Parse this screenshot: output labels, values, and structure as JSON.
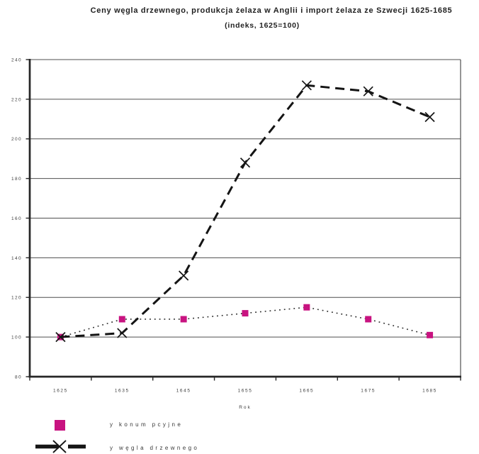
{
  "title": "Ceny węgla drzewnego, produkcja żelaza w Anglii i import żelaza ze Szwecji 1625-1685",
  "subtitle": "(indeks, 1625=100)",
  "colors": {
    "consumption_series": "#C81380",
    "coal_series": "#161616",
    "gridline": "#4f4f4f",
    "axis": "#262626",
    "label_text": "#3d3d3d"
  },
  "chart_data": {
    "type": "line",
    "title": "Ceny węgla drzewnego, produkcja żelaza w Anglii i import żelaza ze Szwecji 1625-1685 (indeks, 1625=100)",
    "categories": [
      "1625",
      "1635",
      "1645",
      "1655",
      "1665",
      "1675",
      "1685"
    ],
    "series": [
      {
        "name": "y konum pcyjne",
        "values": [
          100,
          109,
          109,
          112,
          115,
          109,
          101
        ],
        "marker": "square",
        "line_style": "dotted",
        "color": "#C81380",
        "line_color": "#2a2a2a"
      },
      {
        "name": "y węgla drzewnego",
        "values": [
          100,
          102,
          131,
          188,
          227,
          224,
          211
        ],
        "marker": "x",
        "line_style": "dashed",
        "color": "#161616",
        "line_color": "#141414"
      }
    ],
    "xlabel": "Rok",
    "ylabel": "",
    "ylim": [
      80,
      240
    ],
    "ytick_step": 20,
    "grid": true,
    "legend_position": "bottom-left"
  },
  "legend": {
    "items": [
      {
        "label": "y konum pcyjne",
        "marker": "square"
      },
      {
        "label": "y węgla drzewnego",
        "marker": "dashed-line-x"
      }
    ]
  }
}
